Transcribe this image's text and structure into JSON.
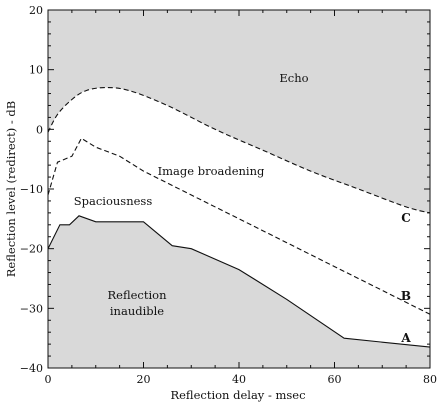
{
  "chart_data": {
    "type": "line",
    "title": "",
    "xlabel": "Reflection delay - msec",
    "ylabel": "Reflection level (redirect) - dB",
    "xlim": [
      0,
      80
    ],
    "ylim": [
      -40,
      20
    ],
    "xticks": [
      0,
      20,
      40,
      60,
      80
    ],
    "yticks": [
      20,
      10,
      0,
      -10,
      -20,
      -30,
      -40
    ],
    "grid": false,
    "legend": "none",
    "fill_color": "#d9d9d9",
    "line_color": "#111111",
    "series": [
      {
        "name": "A",
        "style": "solid",
        "x": [
          0,
          2.5,
          4.5,
          6.5,
          10,
          20,
          26,
          30,
          40,
          50,
          62,
          80
        ],
        "y": [
          -20,
          -16,
          -16,
          -14.5,
          -15.5,
          -15.5,
          -19.5,
          -20,
          -23.5,
          -28.5,
          -35,
          -36.5
        ]
      },
      {
        "name": "B",
        "style": "dashed",
        "x": [
          0,
          2,
          5,
          7,
          10,
          15,
          20,
          30,
          40,
          50,
          60,
          70,
          80
        ],
        "y": [
          -11,
          -5.5,
          -4.5,
          -1.5,
          -3,
          -4.5,
          -7,
          -11,
          -15,
          -19,
          -23,
          -27,
          -31
        ]
      },
      {
        "name": "C",
        "style": "dashed",
        "x": [
          0,
          2,
          5,
          8,
          12,
          17,
          25,
          35,
          45,
          55,
          65,
          75,
          80
        ],
        "y": [
          -0.5,
          2.5,
          5,
          6.5,
          7,
          6.5,
          4,
          0,
          -3.5,
          -7,
          -10,
          -13,
          -14
        ]
      }
    ],
    "regions": {
      "echo": "Echo",
      "image_broadening": "Image broadening",
      "spaciousness": "Spaciousness",
      "inaudible_line1": "Reflection",
      "inaudible_line2": "inaudible"
    },
    "curve_labels": [
      "C",
      "B",
      "A"
    ]
  }
}
